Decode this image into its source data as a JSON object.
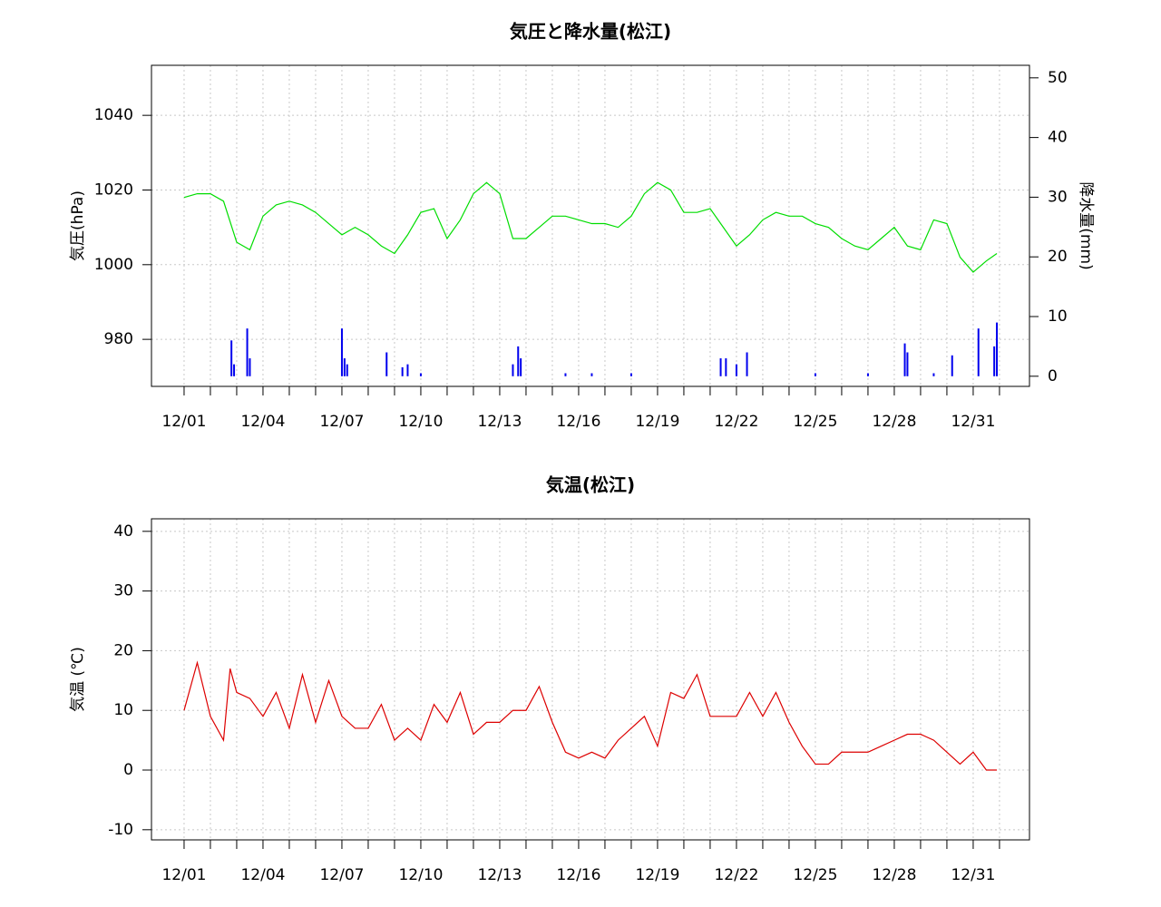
{
  "chart_data": [
    {
      "type": "line",
      "title": "気圧と降水量(松江)",
      "ylabel": "気圧(hPa)",
      "y2label": "降水量(mm)",
      "xlim": [
        -1.24,
        32.14
      ],
      "ylim": [
        967.4,
        1053.4
      ],
      "y2lim": [
        -1.7,
        52.1
      ],
      "xticks": [
        {
          "value": 0,
          "label": "12/01"
        },
        {
          "value": 3,
          "label": "12/04"
        },
        {
          "value": 6,
          "label": "12/07"
        },
        {
          "value": 9,
          "label": "12/10"
        },
        {
          "value": 12,
          "label": "12/13"
        },
        {
          "value": 15,
          "label": "12/16"
        },
        {
          "value": 18,
          "label": "12/19"
        },
        {
          "value": 21,
          "label": "12/22"
        },
        {
          "value": 24,
          "label": "12/25"
        },
        {
          "value": 27,
          "label": "12/28"
        },
        {
          "value": 30,
          "label": "12/31"
        }
      ],
      "xminorticks": [
        0,
        1,
        2,
        3,
        4,
        5,
        6,
        7,
        8,
        9,
        10,
        11,
        12,
        13,
        14,
        15,
        16,
        17,
        18,
        19,
        20,
        21,
        22,
        23,
        24,
        25,
        26,
        27,
        28,
        29,
        30,
        31
      ],
      "yticks": [
        980,
        1000,
        1020,
        1040
      ],
      "y2ticks": [
        0,
        10,
        20,
        30,
        40,
        50
      ],
      "grid": true,
      "series": [
        {
          "name": "気圧",
          "type": "line",
          "color": "#00dd00",
          "x": [
            0,
            0.5,
            1,
            1.5,
            2,
            2.5,
            3,
            3.5,
            4,
            4.5,
            5,
            5.5,
            6,
            6.5,
            7,
            7.5,
            8,
            8.5,
            9,
            9.5,
            10,
            10.5,
            11,
            11.5,
            12,
            12.5,
            13,
            13.5,
            14,
            14.5,
            15,
            15.5,
            16,
            16.5,
            17,
            17.5,
            18,
            18.5,
            19,
            19.5,
            20,
            20.5,
            21,
            21.5,
            22,
            22.5,
            23,
            23.5,
            24,
            24.5,
            25,
            25.5,
            26,
            26.5,
            27,
            27.5,
            28,
            28.5,
            29,
            29.5,
            30,
            30.5,
            30.9
          ],
          "values": [
            1018,
            1019,
            1019,
            1017,
            1006,
            1004,
            1013,
            1016,
            1017,
            1016,
            1014,
            1011,
            1008,
            1010,
            1008,
            1005,
            1003,
            1008,
            1014,
            1015,
            1007,
            1012,
            1019,
            1022,
            1019,
            1007,
            1007,
            1010,
            1013,
            1013,
            1012,
            1011,
            1011,
            1010,
            1013,
            1019,
            1022,
            1020,
            1014,
            1014,
            1015,
            1010,
            1005,
            1008,
            1012,
            1014,
            1013,
            1013,
            1011,
            1010,
            1007,
            1005,
            1004,
            1007,
            1010,
            1005,
            1004,
            1012,
            1011,
            1002,
            998,
            1001,
            1003
          ]
        },
        {
          "name": "降水量",
          "type": "bar",
          "axis": "y2",
          "color": "#0000ee",
          "x": [
            1.8,
            1.9,
            2.4,
            2.5,
            6.0,
            6.1,
            6.2,
            7.7,
            8.3,
            8.5,
            9.0,
            12.5,
            12.7,
            12.8,
            14.5,
            15.5,
            17.0,
            20.4,
            20.6,
            21.0,
            21.4,
            24.0,
            26.0,
            27.4,
            27.5,
            28.5,
            29.2,
            30.2,
            30.8,
            30.9
          ],
          "values": [
            6,
            2,
            8,
            3,
            8,
            3,
            2,
            4,
            1.5,
            2,
            0.5,
            2,
            5,
            3,
            0.5,
            0.5,
            0.5,
            3,
            3,
            2,
            4,
            0.5,
            0.5,
            5.5,
            4,
            0.5,
            3.5,
            8,
            5,
            9
          ]
        }
      ]
    },
    {
      "type": "line",
      "title": "気温(松江)",
      "ylabel": "気温 (℃)",
      "xlim": [
        -1.24,
        32.14
      ],
      "ylim": [
        -11.7,
        42.1
      ],
      "xticks": [
        {
          "value": 0,
          "label": "12/01"
        },
        {
          "value": 3,
          "label": "12/04"
        },
        {
          "value": 6,
          "label": "12/07"
        },
        {
          "value": 9,
          "label": "12/10"
        },
        {
          "value": 12,
          "label": "12/13"
        },
        {
          "value": 15,
          "label": "12/16"
        },
        {
          "value": 18,
          "label": "12/19"
        },
        {
          "value": 21,
          "label": "12/22"
        },
        {
          "value": 24,
          "label": "12/25"
        },
        {
          "value": 27,
          "label": "12/28"
        },
        {
          "value": 30,
          "label": "12/31"
        }
      ],
      "xminorticks": [
        0,
        1,
        2,
        3,
        4,
        5,
        6,
        7,
        8,
        9,
        10,
        11,
        12,
        13,
        14,
        15,
        16,
        17,
        18,
        19,
        20,
        21,
        22,
        23,
        24,
        25,
        26,
        27,
        28,
        29,
        30,
        31
      ],
      "yticks": [
        -10,
        0,
        10,
        20,
        30,
        40
      ],
      "grid": true,
      "series": [
        {
          "name": "気温",
          "type": "line",
          "color": "#dd0000",
          "x": [
            0,
            0.5,
            1,
            1.5,
            1.75,
            2,
            2.5,
            3,
            3.5,
            4,
            4.5,
            5,
            5.5,
            6,
            6.5,
            7,
            7.5,
            8,
            8.5,
            9,
            9.5,
            10,
            10.5,
            11,
            11.5,
            12,
            12.5,
            13,
            13.5,
            14,
            14.5,
            15,
            15.5,
            16,
            16.5,
            17,
            17.5,
            18,
            18.5,
            19,
            19.5,
            20,
            20.5,
            21,
            21.5,
            22,
            22.5,
            23,
            23.5,
            24,
            24.5,
            25,
            25.5,
            26,
            26.5,
            27,
            27.5,
            28,
            28.5,
            29,
            29.5,
            30,
            30.5,
            30.9
          ],
          "values": [
            10,
            18,
            9,
            5,
            17,
            13,
            12,
            9,
            13,
            7,
            16,
            8,
            15,
            9,
            7,
            7,
            11,
            5,
            7,
            5,
            11,
            8,
            13,
            6,
            8,
            8,
            10,
            10,
            14,
            8,
            3,
            2,
            3,
            2,
            5,
            7,
            9,
            4,
            13,
            12,
            16,
            9,
            9,
            9,
            13,
            9,
            13,
            8,
            4,
            1,
            1,
            3,
            3,
            3,
            4,
            5,
            6,
            6,
            5,
            3,
            1,
            3,
            0,
            0
          ]
        }
      ]
    }
  ]
}
